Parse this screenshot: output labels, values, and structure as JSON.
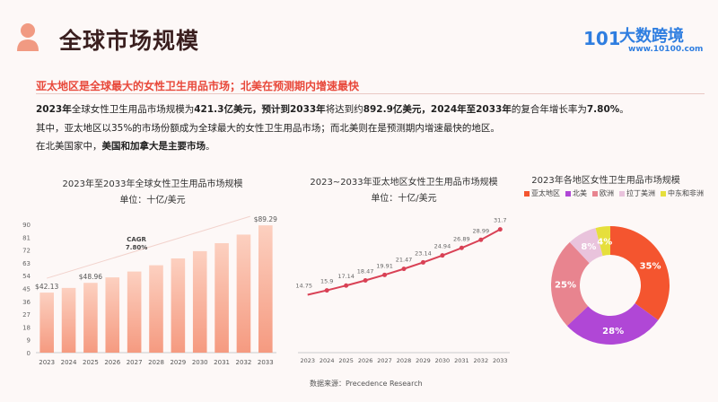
{
  "header": {
    "title": "全球市场规模",
    "logo_text": "大数跨境",
    "logo_number": "10100",
    "logo_url": "www.10100.com",
    "icon": "woman-avatar-icon"
  },
  "headline": "亚太地区是全球最大的女性卫生用品市场；北美在预测期内增速最快",
  "paragraphs": [
    [
      {
        "t": "2023年",
        "b": true
      },
      {
        "t": "全球女性卫生用品市场规模为",
        "b": false
      },
      {
        "t": "421.3亿美元",
        "b": true
      },
      {
        "t": "，预计到2033年",
        "b": true
      },
      {
        "t": "将达到约",
        "b": false
      },
      {
        "t": "892.9亿美元",
        "b": true
      },
      {
        "t": "，2024年至2033年",
        "b": true
      },
      {
        "t": "的复合年增长率为",
        "b": false
      },
      {
        "t": "7.80%",
        "b": true
      },
      {
        "t": "。",
        "b": false
      }
    ],
    [
      {
        "t": "其中，亚太地区以35%的市场份额成为全球最大的女性卫生用品市场；而北美则在是预测期内增速最快的地区。",
        "b": false
      }
    ],
    [
      {
        "t": "在北美国家中，",
        "b": false
      },
      {
        "t": "美国和加拿大是主要市场",
        "b": true
      },
      {
        "t": "。",
        "b": false
      }
    ]
  ],
  "source": "数据来源：Precedence Research",
  "colors": {
    "accent": "#e8483a",
    "title": "#3a1f1f",
    "logo": "#2f7ee0",
    "bar_top": "#fcd0c0",
    "bar_bottom": "#f59a80",
    "line": "#d94155"
  },
  "chart_data": [
    {
      "type": "bar",
      "title": "2023年至2033年全球女性卫生用品市场规模",
      "unit": "单位：十亿/美元",
      "categories": [
        "2023",
        "2024",
        "2025",
        "2026",
        "2027",
        "2028",
        "2029",
        "2030",
        "2031",
        "2032",
        "2033"
      ],
      "values": [
        42.13,
        45.4,
        48.96,
        52.8,
        56.9,
        61.3,
        66.1,
        71.2,
        76.8,
        82.8,
        89.29
      ],
      "data_labels": {
        "0": "$42.13",
        "2": "$48.96",
        "10": "$89.29"
      },
      "yticks": [
        0,
        9,
        18,
        27,
        36,
        45,
        54,
        63,
        72,
        81,
        90
      ],
      "ylim": [
        0,
        90
      ],
      "annotation": {
        "line1": "CAGR",
        "line2": "7.80%"
      }
    },
    {
      "type": "line",
      "title": "2023~2033年亚太地区女性卫生用品市场规模",
      "unit": "单位：十亿/美元",
      "categories": [
        "2023",
        "2024",
        "2025",
        "2026",
        "2027",
        "2028",
        "2029",
        "2030",
        "2031",
        "2032",
        "2033"
      ],
      "values": [
        14.75,
        15.9,
        17.14,
        18.47,
        19.91,
        21.47,
        23.14,
        24.94,
        26.89,
        28.99,
        31.7
      ],
      "ylim": [
        0,
        33
      ]
    },
    {
      "type": "pie",
      "title": "2023年各地区女性卫生用品市场规模",
      "donut": true,
      "slices": [
        {
          "name": "亚太地区",
          "value": 35,
          "label": "35%",
          "color": "#f4552f"
        },
        {
          "name": "北美",
          "value": 28,
          "label": "28%",
          "color": "#b047d6"
        },
        {
          "name": "欧洲",
          "value": 25,
          "label": "25%",
          "color": "#e8848f"
        },
        {
          "name": "拉丁美洲",
          "value": 8,
          "label": "8%",
          "color": "#e9c3dc"
        },
        {
          "name": "中东和非洲",
          "value": 4,
          "label": "4%",
          "color": "#e6df3c"
        }
      ],
      "legend": "top"
    }
  ]
}
